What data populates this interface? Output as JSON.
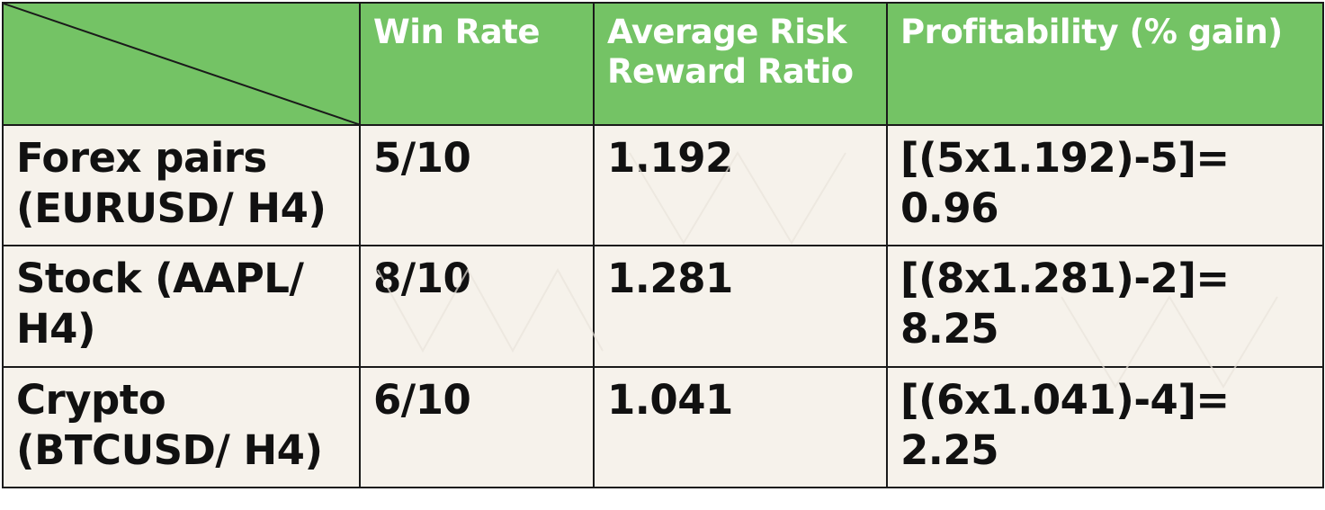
{
  "colors": {
    "header_bg": "#74c365",
    "body_bg": "#f6f2eb",
    "border": "#1a1a1a",
    "header_text": "#ffffff",
    "body_text": "#111111"
  },
  "table": {
    "headers": [
      "Win Rate",
      "Average Risk Reward Ratio",
      "Profitability (% gain)"
    ],
    "rows": [
      {
        "label": "Forex pairs (EURUSD/ H4)",
        "win_rate": "5/10",
        "risk_reward": "1.192",
        "profitability": "[(5x1.192)-5]= 0.96"
      },
      {
        "label": "Stock (AAPL/ H4)",
        "win_rate": "8/10",
        "risk_reward": "1.281",
        "profitability": "[(8x1.281)-2]= 8.25"
      },
      {
        "label": "Crypto (BTCUSD/ H4)",
        "win_rate": "6/10",
        "risk_reward": "1.041",
        "profitability": "[(6x1.041)-4]= 2.25"
      }
    ]
  }
}
